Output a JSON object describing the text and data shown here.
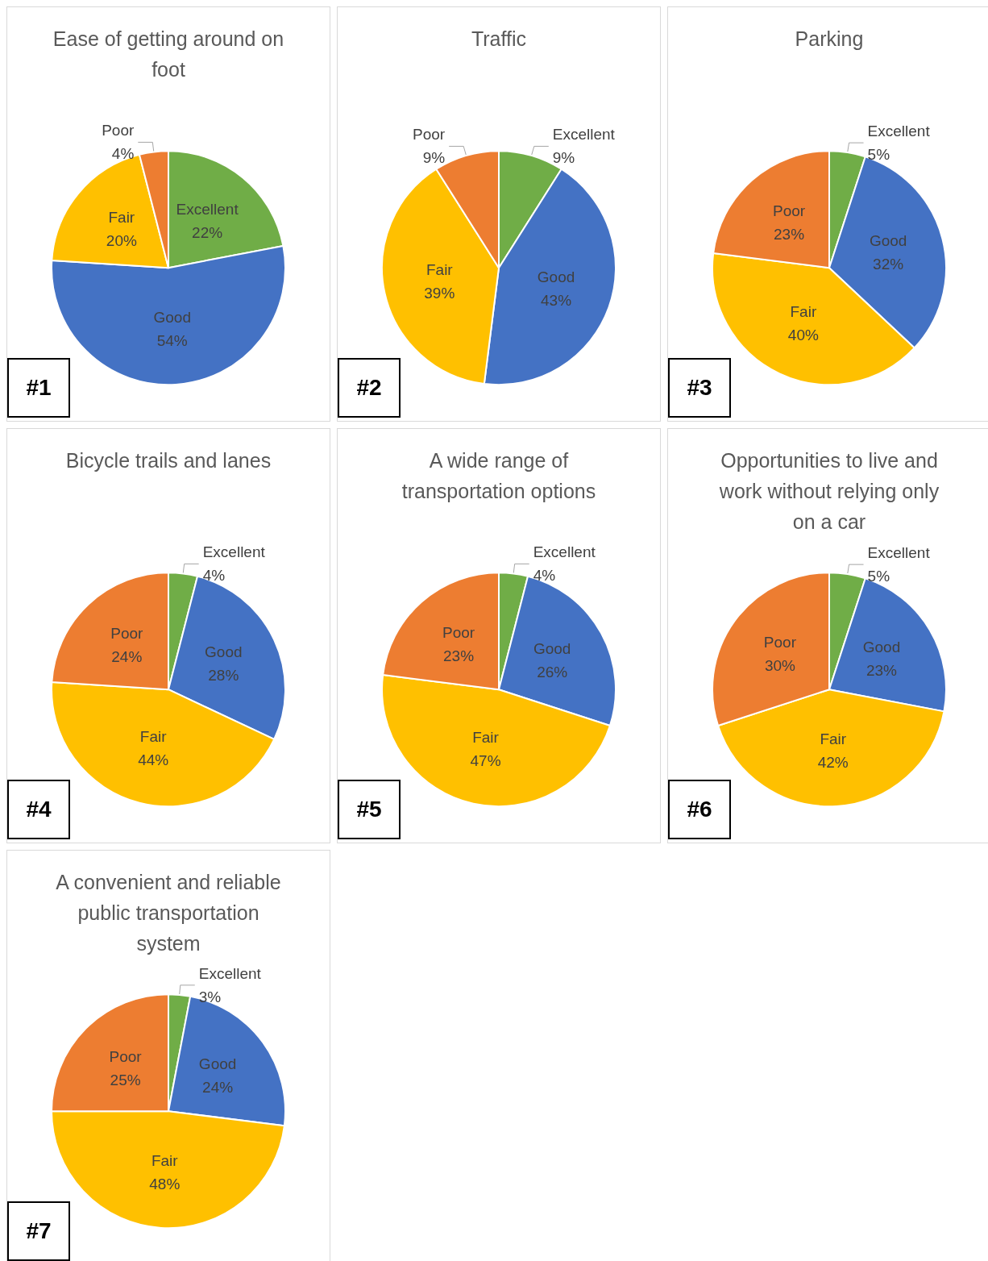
{
  "chart_data": [
    {
      "type": "pie",
      "title": "Ease of getting around on foot",
      "categories": [
        "Excellent",
        "Good",
        "Fair",
        "Poor"
      ],
      "values": [
        22,
        54,
        20,
        4
      ],
      "value_labels": [
        "22%",
        "54%",
        "20%",
        "4%"
      ],
      "colors": [
        "#70ad47",
        "#4472c4",
        "#ffc000",
        "#ed7d31"
      ],
      "annotations": [
        "#1"
      ]
    },
    {
      "type": "pie",
      "title": "Traffic",
      "categories": [
        "Excellent",
        "Good",
        "Fair",
        "Poor"
      ],
      "values": [
        9,
        43,
        39,
        9
      ],
      "value_labels": [
        "9%",
        "43%",
        "39%",
        "9%"
      ],
      "colors": [
        "#70ad47",
        "#4472c4",
        "#ffc000",
        "#ed7d31"
      ],
      "annotations": [
        "#2"
      ]
    },
    {
      "type": "pie",
      "title": "Parking",
      "categories": [
        "Excellent",
        "Good",
        "Fair",
        "Poor"
      ],
      "values": [
        5,
        32,
        40,
        23
      ],
      "value_labels": [
        "5%",
        "32%",
        "40%",
        "23%"
      ],
      "colors": [
        "#70ad47",
        "#4472c4",
        "#ffc000",
        "#ed7d31"
      ],
      "annotations": [
        "#3"
      ]
    },
    {
      "type": "pie",
      "title": "Bicycle trails and lanes",
      "categories": [
        "Excellent",
        "Good",
        "Fair",
        "Poor"
      ],
      "values": [
        4,
        28,
        44,
        24
      ],
      "value_labels": [
        "4%",
        "28%",
        "44%",
        "24%"
      ],
      "colors": [
        "#70ad47",
        "#4472c4",
        "#ffc000",
        "#ed7d31"
      ],
      "annotations": [
        "#4"
      ]
    },
    {
      "type": "pie",
      "title": "A wide range of transportation options",
      "categories": [
        "Excellent",
        "Good",
        "Fair",
        "Poor"
      ],
      "values": [
        4,
        26,
        47,
        23
      ],
      "value_labels": [
        "4%",
        "26%",
        "47%",
        "23%"
      ],
      "colors": [
        "#70ad47",
        "#4472c4",
        "#ffc000",
        "#ed7d31"
      ],
      "annotations": [
        "#5"
      ]
    },
    {
      "type": "pie",
      "title": "Opportunities to live and work without relying only on a car",
      "categories": [
        "Excellent",
        "Good",
        "Fair",
        "Poor"
      ],
      "values": [
        5,
        23,
        42,
        30
      ],
      "value_labels": [
        "5%",
        "23%",
        "42%",
        "30%"
      ],
      "colors": [
        "#70ad47",
        "#4472c4",
        "#ffc000",
        "#ed7d31"
      ],
      "annotations": [
        "#6"
      ]
    },
    {
      "type": "pie",
      "title": "A convenient and reliable public transportation system",
      "categories": [
        "Excellent",
        "Good",
        "Fair",
        "Poor"
      ],
      "values": [
        3,
        24,
        48,
        25
      ],
      "value_labels": [
        "3%",
        "24%",
        "48%",
        "25%"
      ],
      "colors": [
        "#70ad47",
        "#4472c4",
        "#ffc000",
        "#ed7d31"
      ],
      "annotations": [
        "#7"
      ]
    }
  ]
}
